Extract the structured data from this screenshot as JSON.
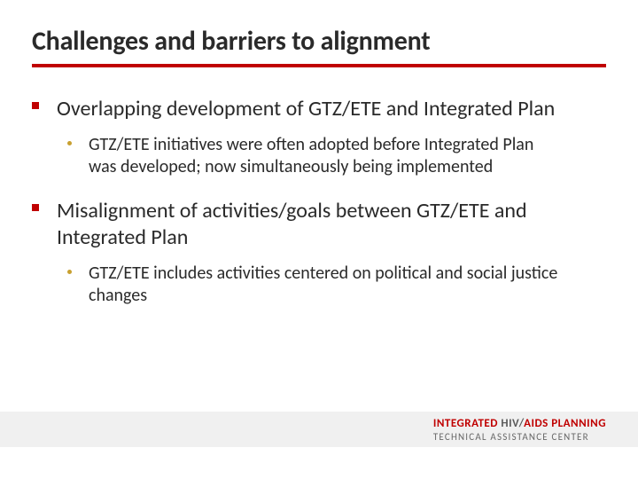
{
  "title": "Challenges and barriers to alignment",
  "title_color": "#2a2a2a",
  "title_fontsize": 30,
  "underline_color": "#c00000",
  "underline_height": 4,
  "body_text_color": "#2a2a2a",
  "lvl1_fontsize": 24,
  "lvl1_bullet_color": "#c00000",
  "lvl2_fontsize": 20,
  "lvl2_bullet_color": "#c8a030",
  "footer_band_color": "#f0f0f0",
  "bullets": [
    {
      "text": "Overlapping development of GTZ/ETE and Integrated Plan",
      "sub": [
        "GTZ/ETE initiatives were often adopted before Integrated Plan was developed; now simultaneously being implemented"
      ]
    },
    {
      "text": "Misalignment of activities/goals between GTZ/ETE and Integrated Plan",
      "sub": [
        "GTZ/ETE includes activities centered on political and social justice changes"
      ]
    }
  ],
  "footer": {
    "line1_a": "INTEGRATED ",
    "line1_b": "HIV/",
    "line1_c": "AIDS PLANNING",
    "line2": "TECHNICAL ASSISTANCE CENTER",
    "color_red": "#c00000",
    "color_gray": "#5a5a5a",
    "color_light": "#6a6a6a"
  }
}
